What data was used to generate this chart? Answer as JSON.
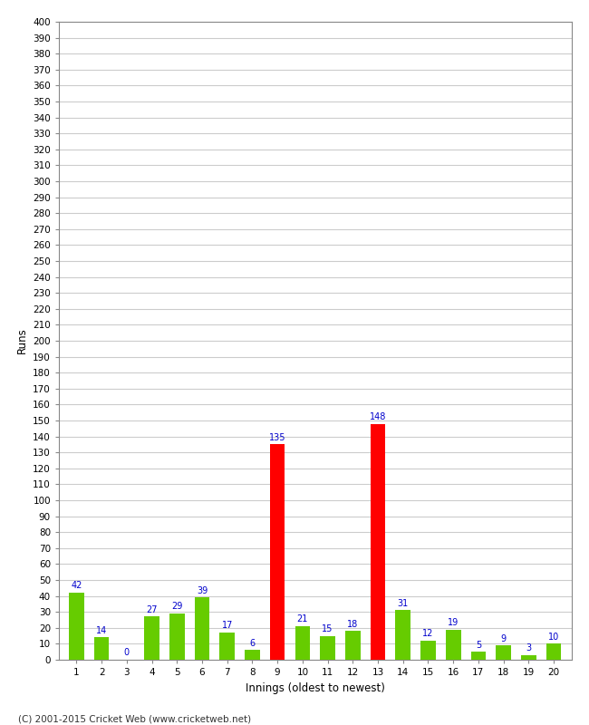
{
  "innings": [
    1,
    2,
    3,
    4,
    5,
    6,
    7,
    8,
    9,
    10,
    11,
    12,
    13,
    14,
    15,
    16,
    17,
    18,
    19,
    20
  ],
  "runs": [
    42,
    14,
    0,
    27,
    29,
    39,
    17,
    6,
    135,
    21,
    15,
    18,
    148,
    31,
    12,
    19,
    5,
    9,
    3,
    10
  ],
  "colors": [
    "#66cc00",
    "#66cc00",
    "#66cc00",
    "#66cc00",
    "#66cc00",
    "#66cc00",
    "#66cc00",
    "#66cc00",
    "#ff0000",
    "#66cc00",
    "#66cc00",
    "#66cc00",
    "#ff0000",
    "#66cc00",
    "#66cc00",
    "#66cc00",
    "#66cc00",
    "#66cc00",
    "#66cc00",
    "#66cc00"
  ],
  "xlabel": "Innings (oldest to newest)",
  "ylabel": "Runs",
  "ytick_step": 10,
  "ymax": 400,
  "background_color": "#ffffff",
  "grid_color": "#cccccc",
  "label_color": "#0000cc",
  "footer": "(C) 2001-2015 Cricket Web (www.cricketweb.net)",
  "bar_width": 0.6
}
